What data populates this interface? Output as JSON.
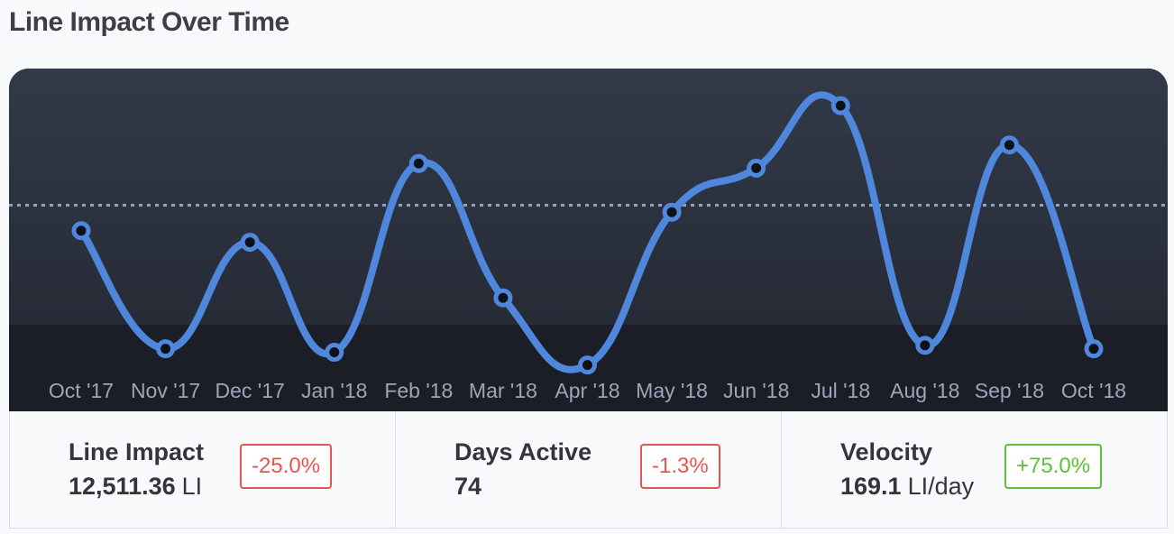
{
  "header": {
    "title": "Line Impact Over Time"
  },
  "chart_data": {
    "type": "line",
    "title": "Line Impact Over Time",
    "categories": [
      "Oct '17",
      "Nov '17",
      "Dec '17",
      "Jan '18",
      "Feb '18",
      "Mar '18",
      "Apr '18",
      "May '18",
      "Jun '18",
      "Jul '18",
      "Aug '18",
      "Sep '18",
      "Oct '18"
    ],
    "series": [
      {
        "values": [
          1260,
          750,
          1210,
          735,
          1550,
          970,
          680,
          1340,
          1530,
          1800,
          765,
          1630,
          750
        ]
      }
    ],
    "average": 1370,
    "ylim": [
      480,
      1960
    ],
    "grid": false,
    "legend": "none",
    "line_color": "#4f87dd",
    "point_fill": "#0e1118",
    "average_line_color": "#8fa4c4"
  },
  "stats": [
    {
      "label": "Line Impact",
      "value": "12,511.36",
      "unit": "LI",
      "change": "-25.0%",
      "direction": "down",
      "color": "#e5564e"
    },
    {
      "label": "Days Active",
      "value": "74",
      "unit": "",
      "change": "-1.3%",
      "direction": "down",
      "color": "#e5564e"
    },
    {
      "label": "Velocity",
      "value": "169.1",
      "unit": "LI/day",
      "change": "+75.0%",
      "direction": "up",
      "color": "#5fbf3b"
    }
  ]
}
